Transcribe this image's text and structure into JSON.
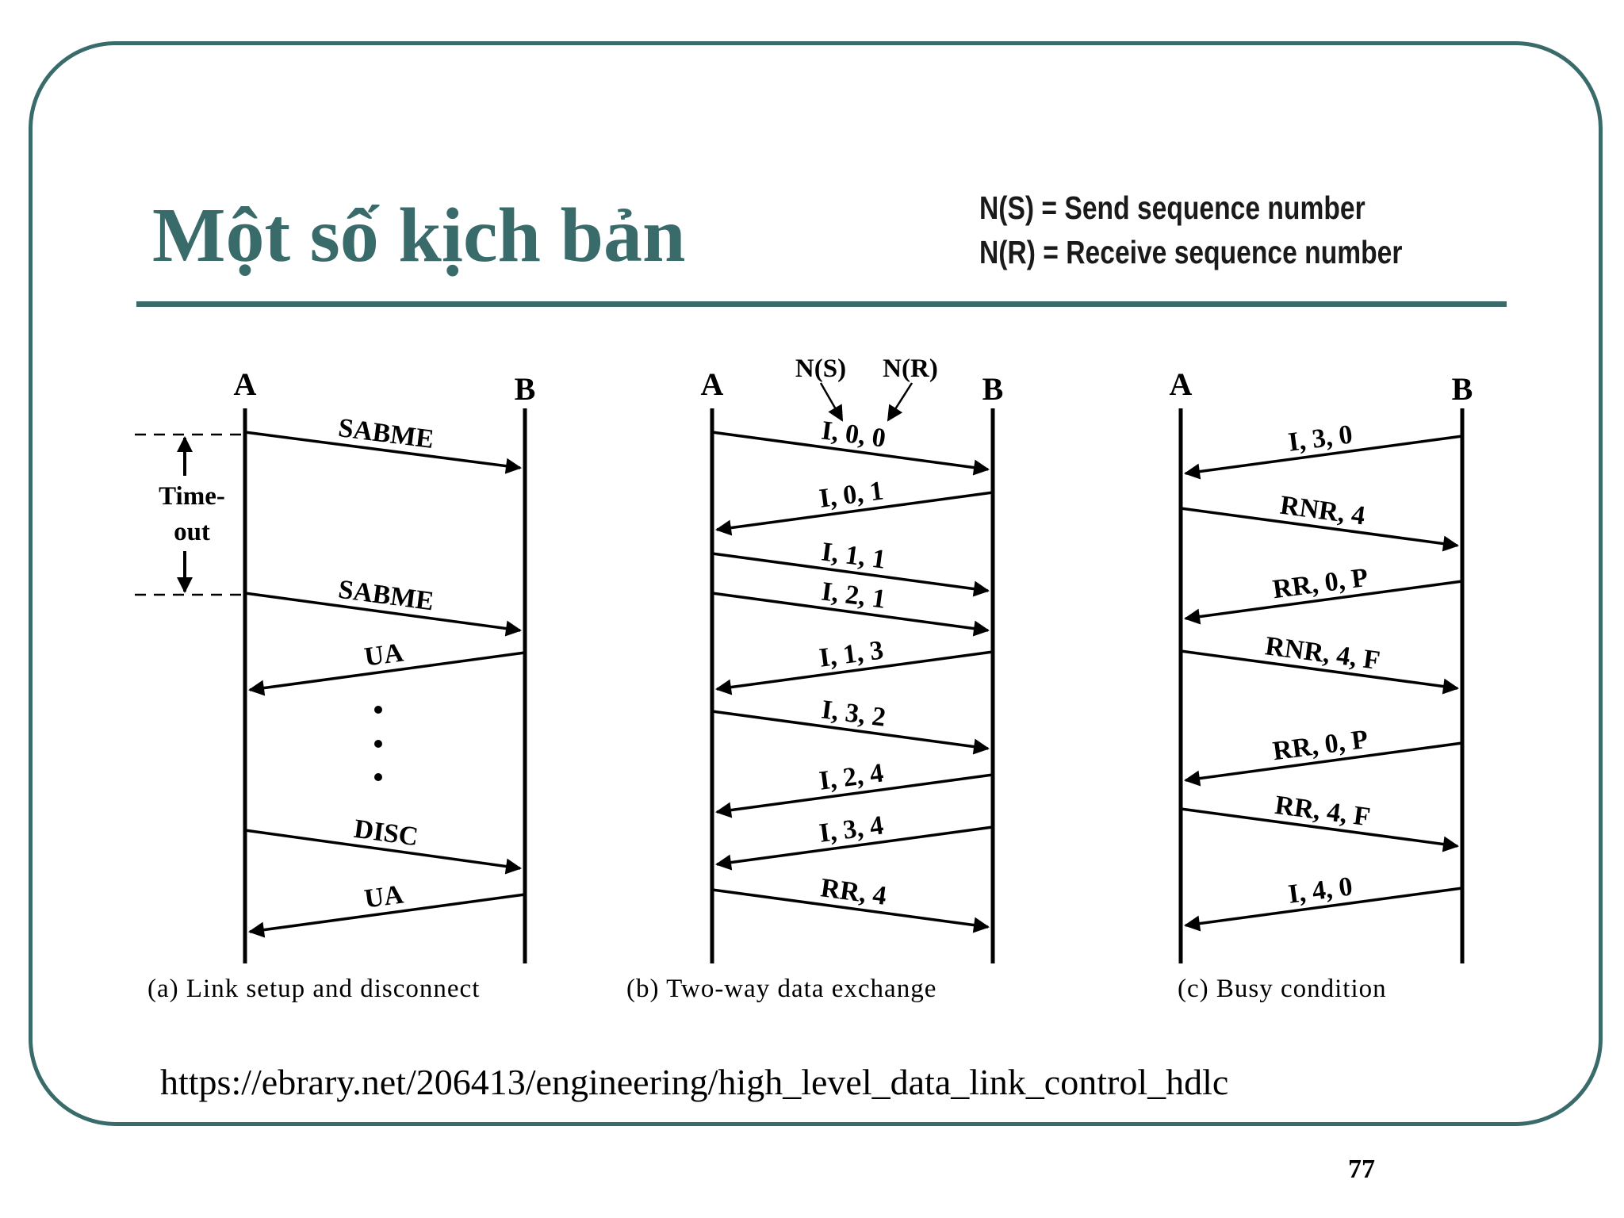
{
  "slide": {
    "title": "Một số kịch bản",
    "legend": {
      "line1": "N(S) = Send sequence number",
      "line2": "N(R) = Receive sequence number"
    },
    "source_url": "https://ebrary.net/206413/engineering/high_level_data_link_control_hdlc",
    "page_number": "77"
  },
  "diagrams": [
    {
      "id": "a",
      "caption": "(a) Link setup and disconnect",
      "station_a": "A",
      "station_b": "B",
      "timeout_label": [
        "Time-",
        "out"
      ],
      "messages": [
        {
          "label": "SABME",
          "dir": "A->B"
        },
        {
          "label": "SABME",
          "dir": "A->B"
        },
        {
          "label": "UA",
          "dir": "B->A"
        },
        {
          "label": "DISC",
          "dir": "A->B"
        },
        {
          "label": "UA",
          "dir": "B->A"
        }
      ]
    },
    {
      "id": "b",
      "caption": "(b) Two-way data exchange",
      "station_a": "A",
      "station_b": "B",
      "field_labels": [
        "N(S)",
        "N(R)"
      ],
      "messages": [
        {
          "label": "I, 0, 0",
          "dir": "A->B"
        },
        {
          "label": "I, 0, 1",
          "dir": "B->A"
        },
        {
          "label": "I, 1, 1",
          "dir": "A->B"
        },
        {
          "label": "I, 2, 1",
          "dir": "A->B"
        },
        {
          "label": "I, 1, 3",
          "dir": "B->A"
        },
        {
          "label": "I, 3, 2",
          "dir": "A->B"
        },
        {
          "label": "I, 2, 4",
          "dir": "B->A"
        },
        {
          "label": "I, 3, 4",
          "dir": "B->A"
        },
        {
          "label": "RR, 4",
          "dir": "A->B"
        }
      ]
    },
    {
      "id": "c",
      "caption": "(c) Busy condition",
      "station_a": "A",
      "station_b": "B",
      "messages": [
        {
          "label": "I, 3, 0",
          "dir": "B->A"
        },
        {
          "label": "RNR, 4",
          "dir": "A->B"
        },
        {
          "label": "RR, 0, P",
          "dir": "B->A"
        },
        {
          "label": "RNR, 4, F",
          "dir": "A->B"
        },
        {
          "label": "RR, 0, P",
          "dir": "B->A"
        },
        {
          "label": "RR, 4, F",
          "dir": "A->B"
        },
        {
          "label": "I, 4, 0",
          "dir": "B->A"
        }
      ]
    }
  ]
}
